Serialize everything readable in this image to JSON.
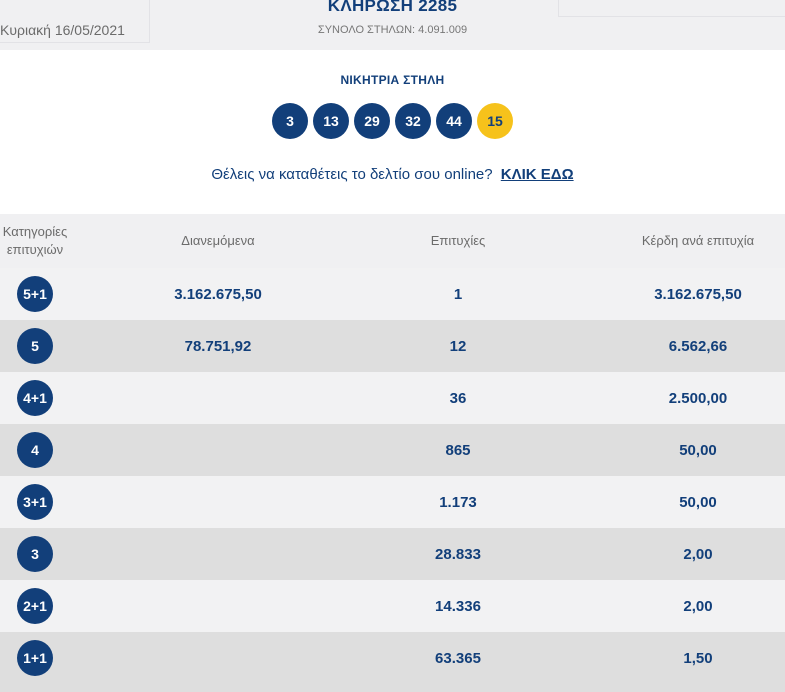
{
  "header": {
    "date": "Κυριακή 16/05/2021",
    "draw_title": "ΚΛΗΡΩΣΗ 2285",
    "total_columns": "ΣΥΝΟΛΟ ΣΤΗΛΩΝ: 4.091.009"
  },
  "winning": {
    "title": "ΝΙΚΗΤΡΙΑ ΣΤΗΛΗ",
    "numbers": [
      "3",
      "13",
      "29",
      "32",
      "44"
    ],
    "joker": "15",
    "colors": {
      "number_ball": "#123f7a",
      "joker_ball": "#f6c21b"
    }
  },
  "promo": {
    "text": "Θέλεις να καταθέτεις το δελτίο σου online?",
    "link": "ΚΛΙΚ ΕΔΩ"
  },
  "table": {
    "headers": {
      "category": "Κατηγορίες επιτυχιών",
      "distributed": "Διανεμόμενα",
      "winners": "Επιτυχίες",
      "prize": "Κέρδη ανά επιτυχία"
    },
    "rows": [
      {
        "category": "5+1",
        "distributed": "3.162.675,50",
        "winners": "1",
        "prize": "3.162.675,50"
      },
      {
        "category": "5",
        "distributed": "78.751,92",
        "winners": "12",
        "prize": "6.562,66"
      },
      {
        "category": "4+1",
        "distributed": "",
        "winners": "36",
        "prize": "2.500,00"
      },
      {
        "category": "4",
        "distributed": "",
        "winners": "865",
        "prize": "50,00"
      },
      {
        "category": "3+1",
        "distributed": "",
        "winners": "1.173",
        "prize": "50,00"
      },
      {
        "category": "3",
        "distributed": "",
        "winners": "28.833",
        "prize": "2,00"
      },
      {
        "category": "2+1",
        "distributed": "",
        "winners": "14.336",
        "prize": "2,00"
      },
      {
        "category": "1+1",
        "distributed": "",
        "winners": "63.365",
        "prize": "1,50"
      }
    ]
  }
}
